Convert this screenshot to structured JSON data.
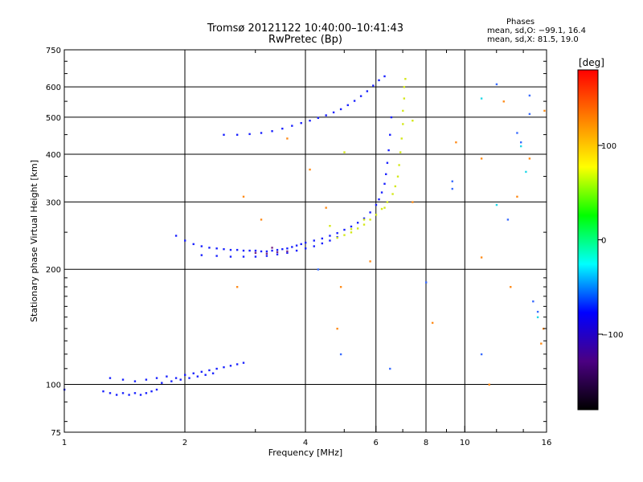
{
  "title_line1": "Tromsø 20121122 10:40:00–10:41:43",
  "title_line2": "RwPretec (Bp)",
  "stats": {
    "header": "Phases",
    "o_line": "mean, sd,O: −99.1, 16.4",
    "x_line": "mean, sd,X:  81.5, 19.0"
  },
  "colorbar": {
    "unit_label": "[deg]",
    "tick_labels": [
      "100",
      "0",
      "−100"
    ],
    "tick_values": [
      100,
      0,
      -100
    ],
    "range": [
      -180,
      180
    ],
    "colors": [
      "#000000",
      "#4b0082",
      "#0000ff",
      "#00ffff",
      "#00ff00",
      "#ffff00",
      "#ff8000",
      "#ff0000"
    ]
  },
  "chart_data": {
    "type": "scatter",
    "xlabel": "Frequency [MHz]",
    "ylabel": "Stationary phase Virtual Height [km]",
    "x_scale": "log",
    "y_scale": "log",
    "xlim": [
      1,
      16
    ],
    "ylim": [
      75,
      750
    ],
    "x_ticks": [
      1,
      2,
      4,
      6,
      8,
      10,
      16
    ],
    "x_tick_labels": [
      "1",
      "2",
      "4",
      "6",
      "8",
      "10",
      "16"
    ],
    "x_minor_ticks": [
      3,
      5,
      7,
      9,
      12,
      14
    ],
    "y_ticks": [
      75,
      100,
      200,
      300,
      400,
      500,
      600,
      750
    ],
    "y_tick_labels": [
      "75",
      "100",
      "200",
      "300",
      "400",
      "500",
      "600",
      "750"
    ],
    "grid": true,
    "series": [
      {
        "color": "#1a22ff",
        "points": [
          [
            1.0,
            97
          ],
          [
            1.25,
            96
          ],
          [
            1.3,
            95
          ],
          [
            1.35,
            94
          ],
          [
            1.4,
            95
          ],
          [
            1.45,
            94
          ],
          [
            1.5,
            95
          ],
          [
            1.55,
            94
          ],
          [
            1.6,
            95
          ],
          [
            1.65,
            96
          ],
          [
            1.7,
            97
          ],
          [
            1.3,
            104
          ],
          [
            1.4,
            103
          ],
          [
            1.5,
            102
          ],
          [
            1.6,
            103
          ],
          [
            1.7,
            104
          ],
          [
            1.8,
            105
          ],
          [
            1.9,
            104
          ],
          [
            2.0,
            106
          ],
          [
            2.1,
            107
          ],
          [
            2.2,
            108
          ],
          [
            2.3,
            109
          ],
          [
            2.4,
            110
          ],
          [
            2.5,
            111
          ],
          [
            2.6,
            112
          ],
          [
            2.7,
            113
          ],
          [
            2.8,
            114
          ],
          [
            1.75,
            101
          ],
          [
            1.85,
            102
          ],
          [
            1.95,
            103
          ],
          [
            2.05,
            104
          ],
          [
            2.15,
            105
          ],
          [
            2.25,
            106
          ],
          [
            2.35,
            107
          ]
        ]
      },
      {
        "color": "#1a22ff",
        "points": [
          [
            1.9,
            245
          ],
          [
            2.0,
            238
          ],
          [
            2.1,
            233
          ],
          [
            2.2,
            230
          ],
          [
            2.3,
            228
          ],
          [
            2.4,
            227
          ],
          [
            2.5,
            226
          ],
          [
            2.6,
            225
          ],
          [
            2.7,
            225
          ],
          [
            2.8,
            224
          ],
          [
            2.9,
            224
          ],
          [
            3.0,
            224
          ],
          [
            3.1,
            223
          ],
          [
            3.2,
            223
          ],
          [
            3.3,
            224
          ],
          [
            3.4,
            225
          ],
          [
            3.5,
            226
          ],
          [
            3.6,
            227
          ],
          [
            3.7,
            229
          ],
          [
            3.8,
            231
          ],
          [
            3.9,
            233
          ],
          [
            4.0,
            235
          ],
          [
            4.2,
            238
          ],
          [
            4.4,
            241
          ],
          [
            4.6,
            245
          ],
          [
            4.8,
            249
          ],
          [
            5.0,
            254
          ],
          [
            5.2,
            259
          ],
          [
            5.4,
            265
          ],
          [
            5.6,
            272
          ],
          [
            5.8,
            282
          ],
          [
            6.0,
            295
          ],
          [
            6.1,
            305
          ],
          [
            6.2,
            318
          ],
          [
            6.3,
            335
          ],
          [
            6.35,
            355
          ],
          [
            6.4,
            380
          ],
          [
            6.45,
            410
          ],
          [
            6.5,
            450
          ],
          [
            6.55,
            500
          ],
          [
            2.2,
            218
          ],
          [
            2.4,
            217
          ],
          [
            2.6,
            216
          ],
          [
            2.8,
            216
          ],
          [
            3.0,
            216
          ],
          [
            3.2,
            217
          ],
          [
            3.4,
            219
          ],
          [
            3.6,
            221
          ],
          [
            3.8,
            224
          ],
          [
            4.0,
            227
          ],
          [
            4.2,
            230
          ],
          [
            4.4,
            234
          ],
          [
            4.6,
            238
          ],
          [
            4.8,
            243
          ]
        ]
      },
      {
        "color": "#1a22ff",
        "points": [
          [
            2.5,
            450
          ],
          [
            2.7,
            450
          ],
          [
            2.9,
            452
          ],
          [
            3.1,
            455
          ],
          [
            3.3,
            460
          ],
          [
            3.5,
            467
          ],
          [
            3.7,
            475
          ],
          [
            3.9,
            483
          ],
          [
            4.1,
            490
          ],
          [
            4.3,
            498
          ],
          [
            4.5,
            506
          ],
          [
            4.7,
            515
          ],
          [
            4.9,
            525
          ],
          [
            5.1,
            538
          ],
          [
            5.3,
            552
          ],
          [
            5.5,
            568
          ],
          [
            5.7,
            585
          ],
          [
            5.9,
            605
          ],
          [
            6.1,
            625
          ],
          [
            6.3,
            640
          ]
        ]
      },
      {
        "color": "#d4e81a",
        "points": [
          [
            4.8,
            242
          ],
          [
            5.0,
            246
          ],
          [
            5.2,
            250
          ],
          [
            5.4,
            256
          ],
          [
            5.6,
            262
          ],
          [
            5.8,
            270
          ],
          [
            6.0,
            278
          ],
          [
            6.2,
            288
          ],
          [
            6.4,
            300
          ],
          [
            6.6,
            315
          ],
          [
            6.7,
            330
          ],
          [
            6.8,
            350
          ],
          [
            6.85,
            375
          ],
          [
            6.9,
            405
          ],
          [
            6.95,
            440
          ],
          [
            7.0,
            480
          ],
          [
            7.0,
            520
          ],
          [
            7.05,
            560
          ],
          [
            7.05,
            600
          ],
          [
            7.1,
            630
          ]
        ]
      },
      {
        "color": "#7a2a8a",
        "points": [
          [
            3.0,
            221
          ],
          [
            3.2,
            220
          ],
          [
            3.4,
            222
          ],
          [
            3.6,
            223
          ],
          [
            3.3,
            228
          ]
        ]
      },
      {
        "color": "#ff8c1a",
        "points": [
          [
            2.8,
            310
          ],
          [
            3.1,
            270
          ],
          [
            2.7,
            180
          ],
          [
            4.1,
            365
          ],
          [
            3.6,
            440
          ],
          [
            4.5,
            290
          ],
          [
            4.9,
            180
          ],
          [
            4.8,
            140
          ],
          [
            5.8,
            210
          ],
          [
            7.4,
            300
          ],
          [
            8.3,
            145
          ],
          [
            9.5,
            430
          ],
          [
            11.0,
            390
          ],
          [
            11.0,
            215
          ],
          [
            11.5,
            100
          ],
          [
            12.5,
            550
          ],
          [
            13.0,
            180
          ],
          [
            13.5,
            310
          ],
          [
            14.5,
            390
          ],
          [
            15.5,
            128
          ],
          [
            15.7,
            140
          ],
          [
            15.8,
            520
          ]
        ]
      },
      {
        "color": "#3a6cff",
        "points": [
          [
            4.3,
            200
          ],
          [
            4.9,
            120
          ],
          [
            6.5,
            110
          ],
          [
            8.0,
            185
          ],
          [
            9.3,
            325
          ],
          [
            9.3,
            340
          ],
          [
            11.0,
            120
          ],
          [
            12.0,
            610
          ],
          [
            12.8,
            270
          ],
          [
            13.5,
            455
          ],
          [
            13.8,
            430
          ],
          [
            14.5,
            510
          ],
          [
            14.5,
            570
          ],
          [
            14.8,
            165
          ],
          [
            15.2,
            155
          ]
        ]
      },
      {
        "color": "#20d8e8",
        "points": [
          [
            11.0,
            560
          ],
          [
            12.0,
            295
          ],
          [
            13.8,
            420
          ],
          [
            14.2,
            360
          ],
          [
            15.2,
            150
          ]
        ]
      },
      {
        "color": "#d4e81a",
        "points": [
          [
            4.6,
            260
          ],
          [
            5.0,
            405
          ],
          [
            5.2,
            255
          ],
          [
            5.6,
            270
          ],
          [
            6.3,
            290
          ],
          [
            7.4,
            490
          ]
        ]
      }
    ]
  }
}
